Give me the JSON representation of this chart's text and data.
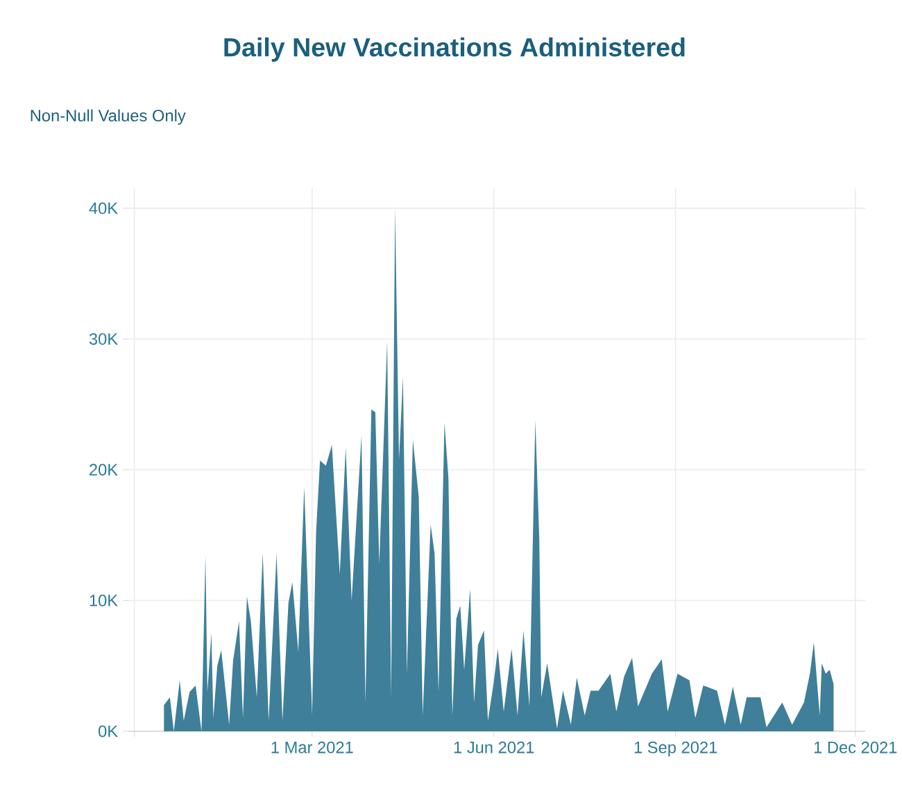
{
  "chart_data": {
    "type": "area",
    "title": "Daily New Vaccinations Administered",
    "subtitle": "Non-Null Values Only",
    "x": [
      "2020-12-16",
      "2020-12-19",
      "2020-12-21",
      "2020-12-24",
      "2020-12-26",
      "2020-12-29",
      "2021-01-01",
      "2021-01-04",
      "2021-01-06",
      "2021-01-07",
      "2021-01-09",
      "2021-01-10",
      "2021-01-12",
      "2021-01-14",
      "2021-01-18",
      "2021-01-20",
      "2021-01-23",
      "2021-01-25",
      "2021-01-27",
      "2021-01-29",
      "2021-02-01",
      "2021-02-04",
      "2021-02-07",
      "2021-02-11",
      "2021-02-14",
      "2021-02-17",
      "2021-02-19",
      "2021-02-22",
      "2021-02-25",
      "2021-03-01",
      "2021-03-03",
      "2021-03-05",
      "2021-03-08",
      "2021-03-11",
      "2021-03-15",
      "2021-03-18",
      "2021-03-21",
      "2021-03-26",
      "2021-03-28",
      "2021-03-31",
      "2021-04-02",
      "2021-04-04",
      "2021-04-08",
      "2021-04-10",
      "2021-04-12",
      "2021-04-14",
      "2021-04-16",
      "2021-04-18",
      "2021-04-21",
      "2021-04-24",
      "2021-04-26",
      "2021-04-30",
      "2021-05-02",
      "2021-05-04",
      "2021-05-07",
      "2021-05-09",
      "2021-05-11",
      "2021-05-13",
      "2021-05-15",
      "2021-05-17",
      "2021-05-20",
      "2021-05-22",
      "2021-05-24",
      "2021-05-27",
      "2021-05-29",
      "2021-06-01",
      "2021-06-03",
      "2021-06-06",
      "2021-06-10",
      "2021-06-13",
      "2021-06-16",
      "2021-06-19",
      "2021-06-22",
      "2021-06-24",
      "2021-06-25",
      "2021-06-28",
      "2021-07-03",
      "2021-07-06",
      "2021-07-10",
      "2021-07-13",
      "2021-07-17",
      "2021-07-20",
      "2021-07-24",
      "2021-07-30",
      "2021-08-02",
      "2021-08-06",
      "2021-08-10",
      "2021-08-13",
      "2021-08-20",
      "2021-08-25",
      "2021-08-28",
      "2021-09-02",
      "2021-09-08",
      "2021-09-11",
      "2021-09-15",
      "2021-09-22",
      "2021-09-26",
      "2021-09-30",
      "2021-10-04",
      "2021-10-07",
      "2021-10-14",
      "2021-10-17",
      "2021-10-25",
      "2021-10-30",
      "2021-11-05",
      "2021-11-08",
      "2021-11-10",
      "2021-11-13",
      "2021-11-14",
      "2021-11-16",
      "2021-11-18",
      "2021-11-20"
    ],
    "series": [
      {
        "color": "#3f7f99",
        "values": [
          2000,
          2600,
          0,
          3900,
          800,
          3000,
          3500,
          0,
          13400,
          3000,
          7500,
          1000,
          5000,
          6200,
          500,
          5400,
          8400,
          1000,
          10300,
          8400,
          2600,
          13600,
          800,
          13600,
          800,
          9800,
          11400,
          6100,
          18700,
          1200,
          15200,
          20700,
          20300,
          21900,
          12000,
          21700,
          10000,
          22600,
          2200,
          24600,
          24400,
          12800,
          29800,
          2600,
          40000,
          20800,
          27100,
          4400,
          22300,
          17900,
          1200,
          15800,
          13600,
          3000,
          23600,
          19400,
          1200,
          8600,
          9600,
          4700,
          10900,
          2200,
          6600,
          7700,
          800,
          3800,
          6300,
          1500,
          6300,
          1200,
          7700,
          1900,
          23800,
          14700,
          2600,
          5200,
          200,
          3100,
          500,
          4100,
          1200,
          3100,
          3100,
          4400,
          1500,
          4200,
          5600,
          1900,
          4400,
          5500,
          1500,
          4400,
          3900,
          1000,
          3500,
          3100,
          500,
          3400,
          500,
          2600,
          2600,
          300,
          2200,
          500,
          2200,
          4400,
          6800,
          1200,
          5200,
          4400,
          4700,
          3600
        ]
      }
    ],
    "xlim": [
      "2020-11-28",
      "2021-12-06"
    ],
    "xticks": [
      {
        "value": "2020-12-01",
        "label": null
      },
      {
        "value": "2021-03-01",
        "label": "1 Mar 2021"
      },
      {
        "value": "2021-06-01",
        "label": "1 Jun 2021"
      },
      {
        "value": "2021-09-01",
        "label": "1 Sep 2021"
      },
      {
        "value": "2021-12-01",
        "label": "1 Dec 2021"
      }
    ],
    "ylim": [
      0,
      41500
    ],
    "yticks": [
      {
        "value": 0,
        "label": "0K"
      },
      {
        "value": 10000,
        "label": "10K"
      },
      {
        "value": 20000,
        "label": "20K"
      },
      {
        "value": 30000,
        "label": "30K"
      },
      {
        "value": 40000,
        "label": "40K"
      }
    ],
    "grid": true
  }
}
